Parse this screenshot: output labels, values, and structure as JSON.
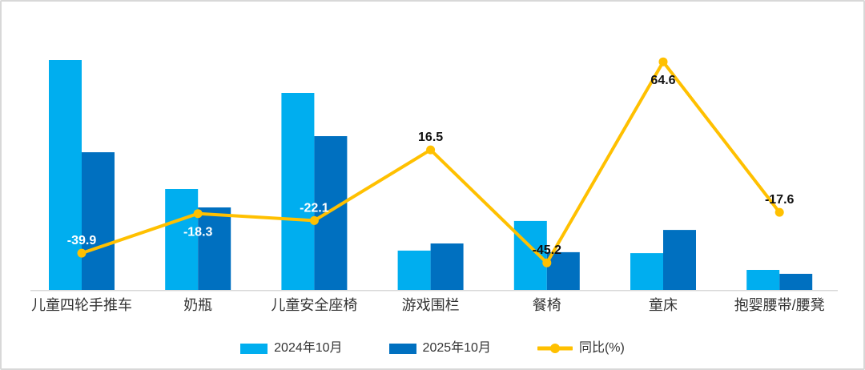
{
  "chart_data": {
    "type": "bar",
    "subtype": "combo-bar-line",
    "title": "",
    "categories": [
      "儿童四轮手推车",
      "奶瓶",
      "儿童安全座椅",
      "游戏围栏",
      "餐椅",
      "童床",
      "抱婴腰带/腰凳"
    ],
    "series": [
      {
        "name": "2024年10月",
        "type": "bar",
        "color": "#00AEEF",
        "values": [
          100,
          43.9,
          85.7,
          17.1,
          30.0,
          16.0,
          8.7
        ]
      },
      {
        "name": "2025年10月",
        "type": "bar",
        "color": "#0070C0",
        "values": [
          59.9,
          35.9,
          66.9,
          20.2,
          16.4,
          26.1,
          7.0
        ]
      },
      {
        "name": "同比(%)",
        "type": "line",
        "color": "#FFC000",
        "values": [
          -39.9,
          -18.3,
          -22.1,
          16.5,
          -45.2,
          64.6,
          -17.6
        ]
      }
    ],
    "line_labels": [
      "-39.9",
      "-18.3",
      "-22.1",
      "16.5",
      "-45.2",
      "64.6",
      "-17.6"
    ],
    "line_label_placement": [
      "above",
      "below",
      "above",
      "above",
      "above",
      "below",
      "above"
    ],
    "line_label_colors": [
      "#ffffff",
      "#ffffff",
      "#ffffff",
      "#111111",
      "#111111",
      "#111111",
      "#111111"
    ],
    "bar_value_axis_visible": false,
    "bar_values_scale": "relative height, tallest bar = 100",
    "line_axis_range": [
      -60,
      80
    ],
    "legend_position": "bottom",
    "grid": false,
    "axis_line_color": "#d9d9d9"
  }
}
